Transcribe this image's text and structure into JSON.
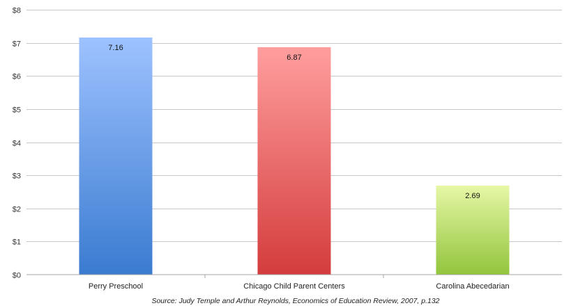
{
  "chart_data": {
    "type": "bar",
    "categories": [
      "Perry Preschool",
      "Chicago Child Parent Centers",
      "Carolina Abecedarian"
    ],
    "values": [
      7.16,
      6.87,
      2.69
    ],
    "data_labels": [
      "7.16",
      "6.87",
      "2.69"
    ],
    "title": "",
    "xlabel": "",
    "ylabel": "",
    "ylim": [
      0,
      8
    ],
    "yticks": [
      0,
      1,
      2,
      3,
      4,
      5,
      6,
      7,
      8
    ],
    "ytick_labels": [
      "$0",
      "$1",
      "$2",
      "$3",
      "$4",
      "$5",
      "$6",
      "$7",
      "$8"
    ],
    "grid": true,
    "legend": "none",
    "colors": [
      {
        "top": "#9ec2ff",
        "bottom": "#3a7bd0"
      },
      {
        "top": "#ff9e9e",
        "bottom": "#d43c3c"
      },
      {
        "top": "#e6f7a6",
        "bottom": "#92c53c"
      }
    ],
    "source": "Source: Judy Temple and Arthur Reynolds, Economics of Education Review, 2007, p.132"
  }
}
